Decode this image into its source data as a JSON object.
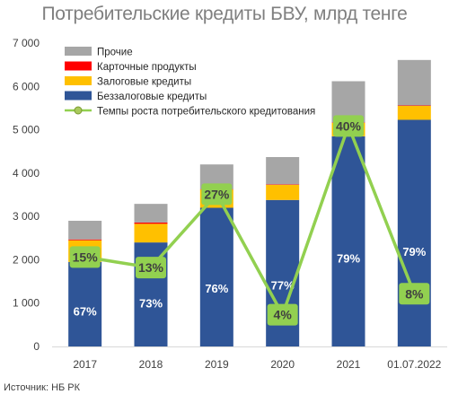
{
  "chart_data": {
    "type": "bar",
    "stacked": true,
    "title": "Потребительские кредиты БВУ, млрд тенге",
    "source": "Источник: НБ РК",
    "categories": [
      "2017",
      "2018",
      "2019",
      "2020",
      "2021",
      "01.07.2022"
    ],
    "ylim": [
      0,
      7000
    ],
    "yticks": [
      "0",
      "1 000",
      "2 000",
      "3 000",
      "4 000",
      "5 000",
      "6 000",
      "7 000"
    ],
    "grid": false,
    "legend_position": "top-left",
    "series": [
      {
        "name": "Беззалоговые кредиты",
        "color": "#2f5597",
        "values": [
          1950,
          2400,
          3200,
          3380,
          4850,
          5230
        ]
      },
      {
        "name": "Залоговые кредиты",
        "color": "#ffc000",
        "values": [
          500,
          430,
          420,
          350,
          310,
          320
        ]
      },
      {
        "name": "Карточные продукты",
        "color": "#ff0000",
        "values": [
          20,
          30,
          10,
          10,
          10,
          10
        ]
      },
      {
        "name": "Прочие",
        "color": "#a6a6a6",
        "values": [
          430,
          430,
          570,
          630,
          950,
          1050
        ]
      }
    ],
    "share_labels": [
      "67%",
      "73%",
      "76%",
      "77%",
      "79%",
      "79%"
    ],
    "line_series": {
      "name": "Темпы роста потребительского кредитования",
      "color": "#92d050",
      "values_percent": [
        15,
        13,
        27,
        4,
        40,
        8
      ],
      "labels": [
        "15%",
        "13%",
        "27%",
        "4%",
        "40%",
        "8%"
      ]
    }
  }
}
